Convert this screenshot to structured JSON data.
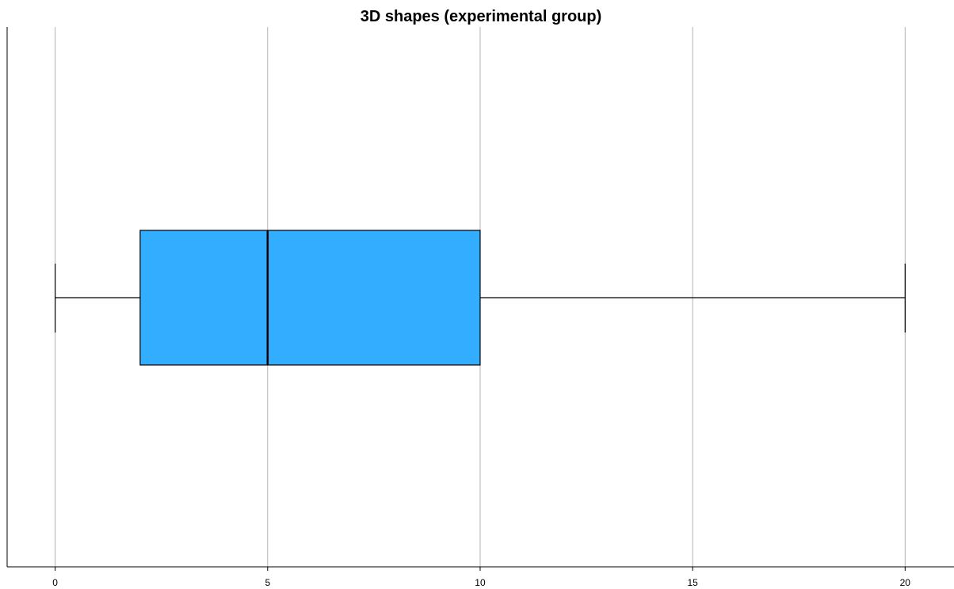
{
  "chart_data": {
    "type": "boxplot",
    "title": "3D shapes (experimental group)",
    "orientation": "horizontal",
    "xlim": [
      -1.13,
      21.15
    ],
    "x_ticks": [
      0,
      5,
      10,
      15,
      20
    ],
    "grid": true,
    "box": {
      "min": 0,
      "q1": 2,
      "median": 5,
      "q3": 10,
      "max": 20
    }
  },
  "colors": {
    "box_fill": "#33adff",
    "outline": "#000000",
    "gridline": "#b3b3b3",
    "background": "#ffffff"
  }
}
